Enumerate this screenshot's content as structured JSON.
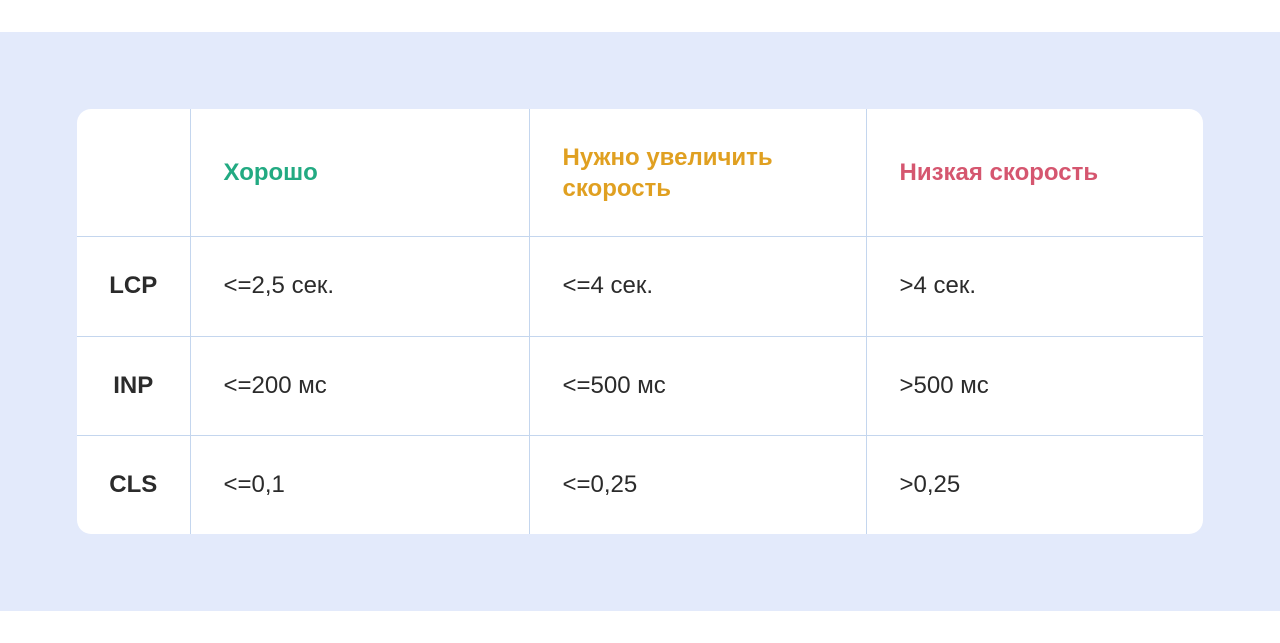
{
  "table": {
    "headers": [
      {
        "label": "",
        "color": ""
      },
      {
        "label": "Хорошо",
        "color": "#22aa82"
      },
      {
        "label": "Нужно увеличить скорость",
        "color": "#e0a021"
      },
      {
        "label": "Низкая скорость",
        "color": "#d5566f"
      }
    ],
    "rows": [
      {
        "metric": "LCP",
        "values": [
          "<=2,5 сек.",
          "<=4 сек.",
          ">4 сек."
        ]
      },
      {
        "metric": "INP",
        "values": [
          "<=200 мс",
          "<=500 мс",
          ">500 мс"
        ]
      },
      {
        "metric": "CLS",
        "values": [
          "<=0,1",
          "<=0,25",
          ">0,25"
        ]
      }
    ]
  }
}
